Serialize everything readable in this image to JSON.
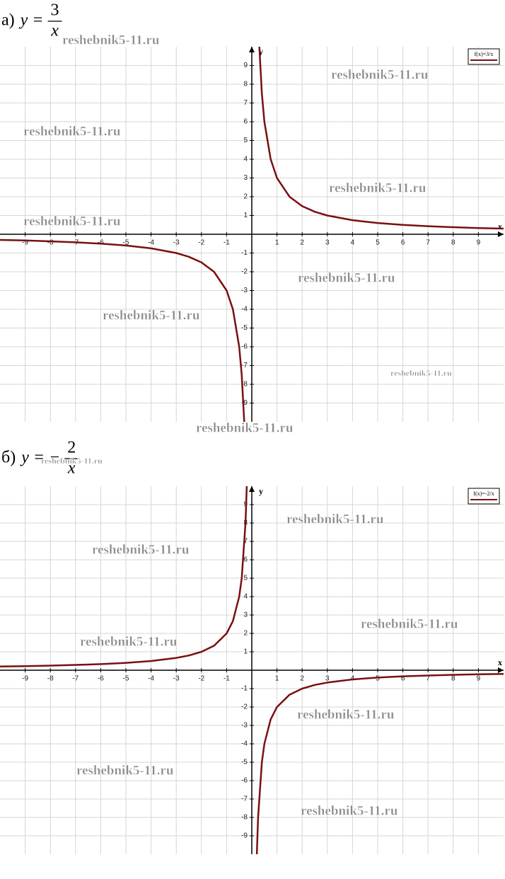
{
  "chart_data": [
    {
      "type": "line",
      "title_label": "а)",
      "title_lhs": "y =",
      "title_numerator": "3",
      "title_denominator": "x",
      "xlabel": "x",
      "ylabel": "y",
      "xlim": [
        -10,
        10
      ],
      "ylim": [
        -10,
        10
      ],
      "xticks": [
        -9,
        -8,
        -7,
        -6,
        -5,
        -4,
        -3,
        -2,
        -1,
        1,
        2,
        3,
        4,
        5,
        6,
        7,
        8,
        9
      ],
      "yticks": [
        -9,
        -8,
        -7,
        -6,
        -5,
        -4,
        -3,
        -2,
        -1,
        1,
        2,
        3,
        4,
        5,
        6,
        7,
        8,
        9
      ],
      "grid": true,
      "legend": "top-right",
      "x": [
        -10,
        -9,
        -8,
        -7,
        -6,
        -5,
        -4,
        -3,
        -2.5,
        -2,
        -1.5,
        -1,
        -0.75,
        -0.5,
        -0.4,
        -0.3,
        0,
        0.3,
        0.4,
        0.5,
        0.75,
        1,
        1.5,
        2,
        2.5,
        3,
        4,
        5,
        6,
        7,
        8,
        9,
        10
      ],
      "series": [
        {
          "name": "f(x)=3/x",
          "color": "#7a1010",
          "values": [
            -0.3,
            -0.33,
            -0.375,
            -0.43,
            -0.5,
            -0.6,
            -0.75,
            -1,
            -1.2,
            -1.5,
            -2,
            -3,
            -4,
            -6,
            -7.5,
            -10,
            null,
            10,
            7.5,
            6,
            4,
            3,
            2,
            1.5,
            1.2,
            1,
            0.75,
            0.6,
            0.5,
            0.43,
            0.375,
            0.33,
            0.3
          ]
        }
      ],
      "watermarks": [
        "reshebnik5-11.ru",
        "reshebnik5-11.ru",
        "reshebnik5-11.ru",
        "reshebnik5-11.ru",
        "reshebnik5-11.ru",
        "reshebnik5-11.ru",
        "reshebnik5-11.ru",
        "reshebnik5-11.ru",
        "reshebnik5-11.ru"
      ]
    },
    {
      "type": "line",
      "title_label": "б)",
      "title_lhs": "y = −",
      "title_numerator": "2",
      "title_denominator": "x",
      "xlabel": "x",
      "ylabel": "y",
      "xlim": [
        -10,
        10
      ],
      "ylim": [
        -10,
        10
      ],
      "xticks": [
        -9,
        -8,
        -7,
        -6,
        -5,
        -4,
        -3,
        -2,
        -1,
        1,
        2,
        3,
        4,
        5,
        6,
        7,
        8,
        9
      ],
      "yticks": [
        -9,
        -8,
        -7,
        -6,
        -5,
        -4,
        -3,
        -2,
        -1,
        1,
        2,
        3,
        4,
        5,
        6,
        7,
        8,
        9
      ],
      "grid": true,
      "legend": "top-right",
      "x": [
        -10,
        -9,
        -8,
        -7,
        -6,
        -5,
        -4,
        -3,
        -2.5,
        -2,
        -1.5,
        -1,
        -0.75,
        -0.5,
        -0.4,
        -0.25,
        -0.2,
        0,
        0.2,
        0.25,
        0.4,
        0.5,
        0.75,
        1,
        1.5,
        2,
        2.5,
        3,
        4,
        5,
        6,
        7,
        8,
        9,
        10
      ],
      "series": [
        {
          "name": "f(x)=-2/x",
          "color": "#7a1010",
          "values": [
            0.2,
            0.22,
            0.25,
            0.29,
            0.33,
            0.4,
            0.5,
            0.67,
            0.8,
            1,
            1.33,
            2,
            2.67,
            4,
            5,
            8,
            10,
            null,
            -10,
            -8,
            -5,
            -4,
            -2.67,
            -2,
            -1.33,
            -1,
            -0.8,
            -0.67,
            -0.5,
            -0.4,
            -0.33,
            -0.29,
            -0.25,
            -0.22,
            -0.2
          ]
        }
      ],
      "watermarks": [
        "reshebnik5-11.ru",
        "reshebnik5-11.ru",
        "reshebnik5-11.ru",
        "reshebnik5-11.ru",
        "reshebnik5-11.ru",
        "reshebnik5-11.ru",
        "reshebnik5-11.ru",
        "reshebnik5-11.ru"
      ]
    }
  ]
}
